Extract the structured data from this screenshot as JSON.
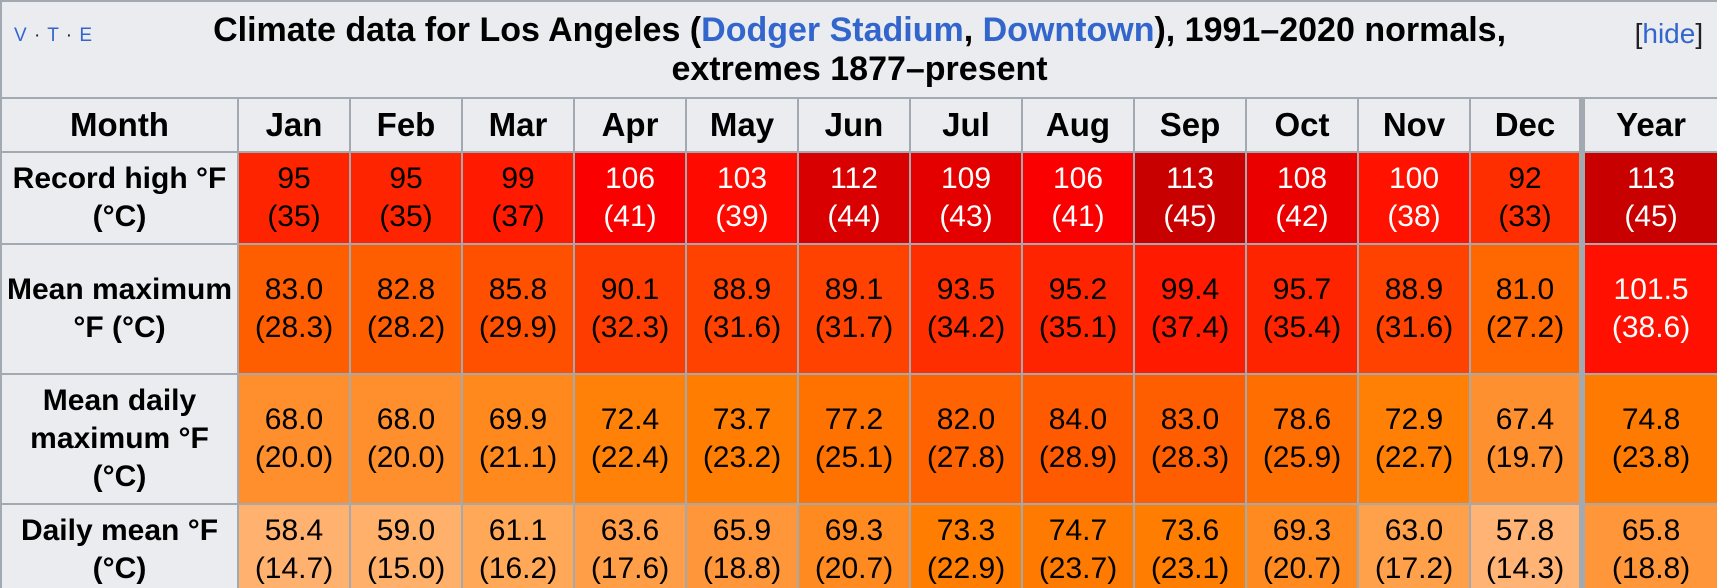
{
  "navbox": {
    "vte": [
      "V",
      "T",
      "E"
    ],
    "hide_prefix": "[",
    "hide_label": "hide",
    "hide_suffix": "]"
  },
  "title": {
    "part1": "Climate data for Los Angeles (",
    "link1": "Dodger Stadium",
    "sep": ", ",
    "link2": "Downtown",
    "part2": "), 1991–2020 normals, extremes 1877–present"
  },
  "header": {
    "month_label": "Month",
    "months": [
      "Jan",
      "Feb",
      "Mar",
      "Apr",
      "May",
      "Jun",
      "Jul",
      "Aug",
      "Sep",
      "Oct",
      "Nov",
      "Dec"
    ],
    "year_label": "Year"
  },
  "rows": [
    {
      "label": "Record high °F (°C)",
      "cells": [
        {
          "f": "95",
          "c": "(35)",
          "bg": "#ff2400",
          "fg": "#000000"
        },
        {
          "f": "95",
          "c": "(35)",
          "bg": "#ff2400",
          "fg": "#000000"
        },
        {
          "f": "99",
          "c": "(37)",
          "bg": "#ff1a00",
          "fg": "#000000"
        },
        {
          "f": "106",
          "c": "(41)",
          "bg": "#fa0000",
          "fg": "#ffffff"
        },
        {
          "f": "103",
          "c": "(39)",
          "bg": "#ff0a00",
          "fg": "#ffffff"
        },
        {
          "f": "112",
          "c": "(44)",
          "bg": "#d80000",
          "fg": "#ffffff"
        },
        {
          "f": "109",
          "c": "(43)",
          "bg": "#e50000",
          "fg": "#ffffff"
        },
        {
          "f": "106",
          "c": "(41)",
          "bg": "#fa0000",
          "fg": "#ffffff"
        },
        {
          "f": "113",
          "c": "(45)",
          "bg": "#c80000",
          "fg": "#ffffff"
        },
        {
          "f": "108",
          "c": "(42)",
          "bg": "#eb0000",
          "fg": "#ffffff"
        },
        {
          "f": "100",
          "c": "(38)",
          "bg": "#ff1200",
          "fg": "#ffffff"
        },
        {
          "f": "92",
          "c": "(33)",
          "bg": "#ff2e00",
          "fg": "#000000"
        },
        {
          "f": "113",
          "c": "(45)",
          "bg": "#c80000",
          "fg": "#ffffff"
        }
      ]
    },
    {
      "label": "Mean maximum °F (°C)",
      "cells": [
        {
          "f": "83.0",
          "c": "(28.3)",
          "bg": "#ff5e00",
          "fg": "#000000"
        },
        {
          "f": "82.8",
          "c": "(28.2)",
          "bg": "#ff5e00",
          "fg": "#000000"
        },
        {
          "f": "85.8",
          "c": "(29.9)",
          "bg": "#ff5000",
          "fg": "#000000"
        },
        {
          "f": "90.1",
          "c": "(32.3)",
          "bg": "#ff3c00",
          "fg": "#000000"
        },
        {
          "f": "88.9",
          "c": "(31.6)",
          "bg": "#ff4200",
          "fg": "#000000"
        },
        {
          "f": "89.1",
          "c": "(31.7)",
          "bg": "#ff4200",
          "fg": "#000000"
        },
        {
          "f": "93.5",
          "c": "(34.2)",
          "bg": "#ff2e00",
          "fg": "#000000"
        },
        {
          "f": "95.2",
          "c": "(35.1)",
          "bg": "#ff2400",
          "fg": "#000000"
        },
        {
          "f": "99.4",
          "c": "(37.4)",
          "bg": "#ff1a00",
          "fg": "#000000"
        },
        {
          "f": "95.7",
          "c": "(35.4)",
          "bg": "#ff2400",
          "fg": "#000000"
        },
        {
          "f": "88.9",
          "c": "(31.6)",
          "bg": "#ff4200",
          "fg": "#000000"
        },
        {
          "f": "81.0",
          "c": "(27.2)",
          "bg": "#ff6700",
          "fg": "#000000"
        },
        {
          "f": "101.5",
          "c": "(38.6)",
          "bg": "#ff1000",
          "fg": "#ffffff"
        }
      ]
    },
    {
      "label": "Mean daily maximum °F (°C)",
      "cells": [
        {
          "f": "68.0",
          "c": "(20.0)",
          "bg": "#ff8e2c",
          "fg": "#000000"
        },
        {
          "f": "68.0",
          "c": "(20.0)",
          "bg": "#ff8e2c",
          "fg": "#000000"
        },
        {
          "f": "69.9",
          "c": "(21.1)",
          "bg": "#ff891c",
          "fg": "#000000"
        },
        {
          "f": "72.4",
          "c": "(22.4)",
          "bg": "#ff8108",
          "fg": "#000000"
        },
        {
          "f": "73.7",
          "c": "(23.2)",
          "bg": "#ff7d00",
          "fg": "#000000"
        },
        {
          "f": "77.2",
          "c": "(25.1)",
          "bg": "#ff7200",
          "fg": "#000000"
        },
        {
          "f": "82.0",
          "c": "(27.8)",
          "bg": "#ff6200",
          "fg": "#000000"
        },
        {
          "f": "84.0",
          "c": "(28.9)",
          "bg": "#ff5a00",
          "fg": "#000000"
        },
        {
          "f": "83.0",
          "c": "(28.3)",
          "bg": "#ff5e00",
          "fg": "#000000"
        },
        {
          "f": "78.6",
          "c": "(25.9)",
          "bg": "#ff6e00",
          "fg": "#000000"
        },
        {
          "f": "72.9",
          "c": "(22.7)",
          "bg": "#ff8004",
          "fg": "#000000"
        },
        {
          "f": "67.4",
          "c": "(19.7)",
          "bg": "#ff9030",
          "fg": "#000000"
        },
        {
          "f": "74.8",
          "c": "(23.8)",
          "bg": "#ff7a00",
          "fg": "#000000"
        }
      ]
    },
    {
      "label": "Daily mean °F (°C)",
      "cells": [
        {
          "f": "58.4",
          "c": "(14.7)",
          "bg": "#ffb270",
          "fg": "#000000"
        },
        {
          "f": "59.0",
          "c": "(15.0)",
          "bg": "#ffb06a",
          "fg": "#000000"
        },
        {
          "f": "61.1",
          "c": "(16.2)",
          "bg": "#ffa858",
          "fg": "#000000"
        },
        {
          "f": "63.6",
          "c": "(17.6)",
          "bg": "#ff9e46",
          "fg": "#000000"
        },
        {
          "f": "65.9",
          "c": "(18.8)",
          "bg": "#ff963a",
          "fg": "#000000"
        },
        {
          "f": "69.3",
          "c": "(20.7)",
          "bg": "#ff8a20",
          "fg": "#000000"
        },
        {
          "f": "73.3",
          "c": "(22.9)",
          "bg": "#ff7e02",
          "fg": "#000000"
        },
        {
          "f": "74.7",
          "c": "(23.7)",
          "bg": "#ff7a00",
          "fg": "#000000"
        },
        {
          "f": "73.6",
          "c": "(23.1)",
          "bg": "#ff7d00",
          "fg": "#000000"
        },
        {
          "f": "69.3",
          "c": "(20.7)",
          "bg": "#ff8a20",
          "fg": "#000000"
        },
        {
          "f": "63.0",
          "c": "(17.2)",
          "bg": "#ffa04a",
          "fg": "#000000"
        },
        {
          "f": "57.8",
          "c": "(14.3)",
          "bg": "#ffb476",
          "fg": "#000000"
        },
        {
          "f": "65.8",
          "c": "(18.8)",
          "bg": "#ff963a",
          "fg": "#000000"
        }
      ]
    }
  ]
}
